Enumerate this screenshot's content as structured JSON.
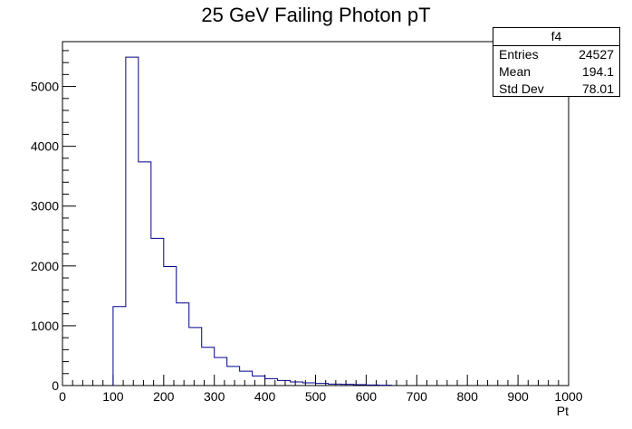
{
  "chart_data": {
    "type": "bar",
    "title": "25 GeV Failing Photon pT",
    "xlabel": "Pt",
    "ylabel": "",
    "xlim": [
      0,
      1000
    ],
    "ylim": [
      0,
      5750
    ],
    "x_ticks": [
      0,
      100,
      200,
      300,
      400,
      500,
      600,
      700,
      800,
      900,
      1000
    ],
    "y_ticks": [
      0,
      1000,
      2000,
      3000,
      4000,
      5000
    ],
    "bin_width": 25,
    "bin_edges_start": [
      100,
      125,
      150,
      175,
      200,
      225,
      250,
      275,
      300,
      325,
      350,
      375,
      400,
      425,
      450,
      475,
      500,
      525,
      550,
      575,
      600,
      625
    ],
    "values": [
      1320,
      5490,
      3740,
      2460,
      1990,
      1380,
      970,
      640,
      470,
      320,
      240,
      160,
      115,
      85,
      60,
      45,
      35,
      25,
      20,
      15,
      10,
      5
    ],
    "line_color": "#00008b",
    "grid": false,
    "stats_box": {
      "title": "f4",
      "rows": [
        {
          "label": "Entries",
          "value": "24527"
        },
        {
          "label": "Mean",
          "value": "194.1"
        },
        {
          "label": "Std Dev",
          "value": "78.01"
        }
      ]
    }
  }
}
